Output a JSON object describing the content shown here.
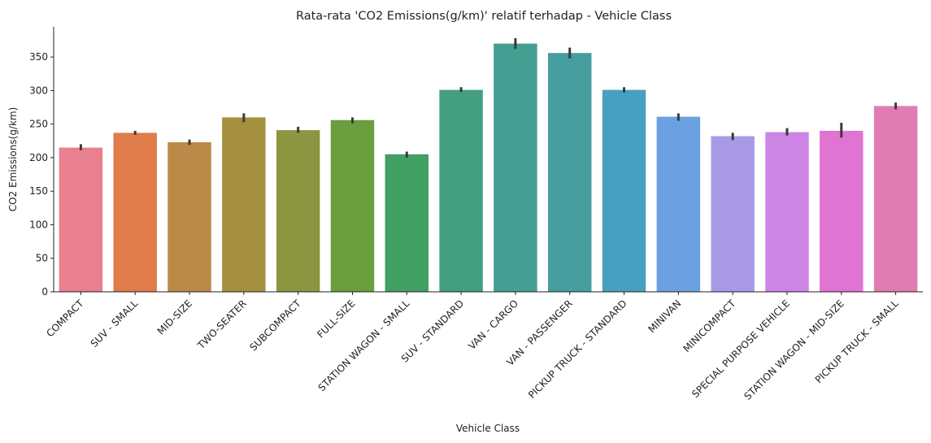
{
  "chart_data": {
    "type": "bar",
    "title": "Rata-rata 'CO2 Emissions(g/km)' relatif terhadap - Vehicle Class",
    "xlabel": "Vehicle Class",
    "ylabel": "CO2 Emissions(g/km)",
    "ylim": [
      0,
      395
    ],
    "yticks": [
      0,
      50,
      100,
      150,
      200,
      250,
      300,
      350
    ],
    "grid": false,
    "legend": "none",
    "categories": [
      "COMPACT",
      "SUV - SMALL",
      "MID-SIZE",
      "TWO-SEATER",
      "SUBCOMPACT",
      "FULL-SIZE",
      "STATION WAGON - SMALL",
      "SUV - STANDARD",
      "VAN - CARGO",
      "VAN - PASSENGER",
      "PICKUP TRUCK - STANDARD",
      "MINIVAN",
      "MINICOMPACT",
      "SPECIAL PURPOSE VEHICLE",
      "STATION WAGON - MID-SIZE",
      "PICKUP TRUCK - SMALL"
    ],
    "values": [
      215,
      237,
      223,
      260,
      241,
      256,
      205,
      301,
      370,
      356,
      301,
      261,
      232,
      238,
      240,
      277
    ],
    "error_low": [
      211,
      234,
      219,
      253,
      237,
      251,
      200,
      298,
      362,
      348,
      297,
      255,
      226,
      233,
      230,
      272
    ],
    "error_high": [
      220,
      240,
      227,
      266,
      246,
      260,
      209,
      305,
      378,
      364,
      305,
      266,
      237,
      244,
      252,
      282
    ],
    "colors": [
      "#e8808f",
      "#df7c4a",
      "#bb8a48",
      "#a59040",
      "#8c9540",
      "#6b9e3f",
      "#42a065",
      "#449f81",
      "#449e92",
      "#469e9e",
      "#48a0c0",
      "#6ba1e0",
      "#a99ae6",
      "#cc85e4",
      "#e074d2",
      "#e17cb2"
    ],
    "error_color": "#3a3a3a"
  }
}
